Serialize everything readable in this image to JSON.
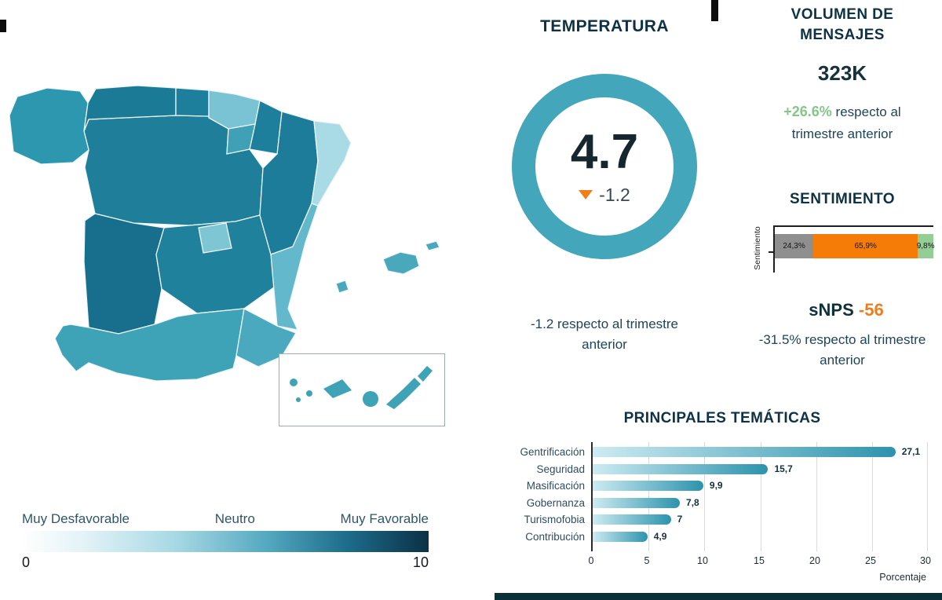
{
  "temperatura": {
    "title": "TEMPERATURA",
    "value": "4.7",
    "delta": "-1.2",
    "note": "-1.2 respecto al trimestre anterior"
  },
  "volumen": {
    "title": "VOLUMEN DE MENSAJES",
    "value": "323K",
    "delta": "+26.6%",
    "delta_suffix": " respecto al trimestre anterior"
  },
  "sentimiento": {
    "title": "SENTIMIENTO",
    "axis_label": "Sentimiento",
    "snps_label": "sNPS",
    "snps_value": "-56",
    "note": "-31.5% respecto al trimestre anterior"
  },
  "tematicas": {
    "title": "PRINCIPALES TEMÁTICAS",
    "xlabel": "Porcentaje"
  },
  "map_legend": {
    "low": "Muy Desfavorable",
    "mid": "Neutro",
    "high": "Muy Favorable",
    "scale_min": "0",
    "scale_max": "10"
  },
  "colors": {
    "teal_ring": "#44a6ba",
    "orange": "#ef7d1a",
    "green_positive": "#84c787",
    "heading": "#0e3245"
  },
  "chart_data": [
    {
      "id": "temperatura_gauge",
      "type": "pie",
      "subtype": "donut-gauge",
      "title": "TEMPERATURA",
      "value": 4.7,
      "value_range": [
        0,
        10
      ],
      "delta": -1.2,
      "annotation": "-1.2 respecto al trimestre anterior",
      "ring_color": "#44a6ba"
    },
    {
      "id": "sentimiento_stacked_bar",
      "type": "bar",
      "subtype": "stacked-horizontal",
      "title": "SENTIMIENTO",
      "ylabel": "Sentimiento",
      "xlim": [
        0,
        100
      ],
      "segments": [
        {
          "label": "24,3%",
          "value": 24.3,
          "color": "#8f8f8f"
        },
        {
          "label": "65,9%",
          "value": 65.9,
          "color": "#f57d07"
        },
        {
          "label": "9,8%",
          "value": 9.8,
          "color": "#93ce94"
        }
      ],
      "snps": {
        "label": "sNPS",
        "value": -56,
        "note": "-31.5% respecto al trimestre anterior"
      }
    },
    {
      "id": "principales_tematicas",
      "type": "bar",
      "subtype": "horizontal",
      "title": "PRINCIPALES TEMÁTICAS",
      "categories": [
        "Gentrificación",
        "Seguridad",
        "Masificación",
        "Gobernanza",
        "Turismofobia",
        "Contribución"
      ],
      "values": [
        27.1,
        15.7,
        9.9,
        7.8,
        7,
        4.9
      ],
      "value_labels": [
        "27,1",
        "15,7",
        "9,9",
        "7,8",
        "7",
        "4,9"
      ],
      "xlabel": "Porcentaje",
      "xlim": [
        0,
        30
      ],
      "xticks": [
        "0",
        "5",
        "10",
        "15",
        "20",
        "25",
        "30"
      ],
      "bar_gradient": [
        "#cdebf2",
        "#2d93ad"
      ],
      "grid": true,
      "legend_position": "none"
    },
    {
      "id": "mapa_espana",
      "type": "heatmap",
      "subtype": "choropleth",
      "colorbar": {
        "labels": [
          "Muy Desfavorable",
          "Neutro",
          "Muy Favorable"
        ],
        "range": [
          0,
          10
        ],
        "gradient": [
          "#ffffff",
          "#0b3145"
        ]
      },
      "regions": {
        "galicia": "#2e97b0",
        "asturias": "#1b7a96",
        "cantabria": "#1d7f9c",
        "pais_vasco": "#79c3d4",
        "navarra": "#1d7f9c",
        "la_rioja": "#3fa0b6",
        "aragon": "#1c7c99",
        "cataluna": "#a9dbe7",
        "castilla_y_leon": "#1f7f9b",
        "madrid": "#7fc6d5",
        "castilla_la_mancha": "#20819d",
        "extremadura": "#186f8d",
        "comunidad_valenciana": "#63b8cc",
        "murcia": "#4aa9bf",
        "andalucia": "#3fa3b8",
        "islas_baleares": "#4aa8bd",
        "islas_canarias": "#3fa3b8"
      }
    }
  ]
}
